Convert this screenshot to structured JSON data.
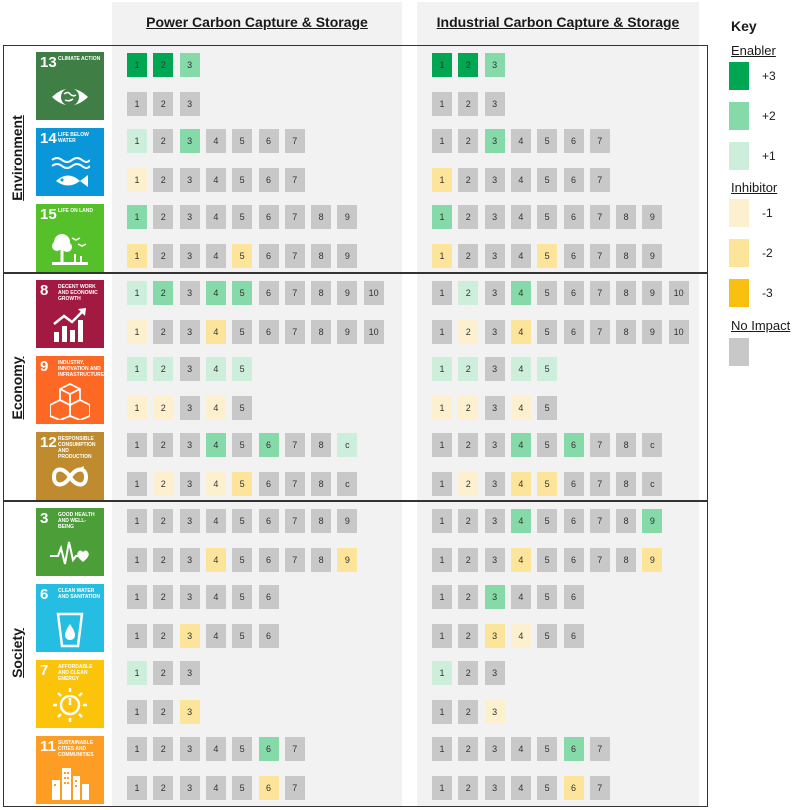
{
  "columns": [
    "Power Carbon Capture & Storage",
    "Industrial Carbon Capture & Storage"
  ],
  "categories": [
    "Environment",
    "Economy",
    "Society"
  ],
  "key": {
    "title": "Key",
    "enabler": "Enabler",
    "inhibitor": "Inhibitor",
    "none": "No Impact",
    "enabler_items": [
      {
        "label": "+3",
        "color": "#00a651"
      },
      {
        "label": "+2",
        "color": "#86d9a8"
      },
      {
        "label": "+1",
        "color": "#cdeedb"
      }
    ],
    "inhibitor_items": [
      {
        "label": "-1",
        "color": "#fdf0cf"
      },
      {
        "label": "-2",
        "color": "#fce49a"
      },
      {
        "label": "-3",
        "color": "#f9c011"
      }
    ],
    "none_color": "#c8c8c8"
  },
  "colors": {
    "3": "#00a651",
    "2": "#86d9a8",
    "1": "#cdeedb",
    "-1": "#fdf0cf",
    "-2": "#fce49a",
    "-3": "#f9c011",
    "0": "#c8c8c8"
  },
  "goals": [
    {
      "num": "13",
      "title": "Climate Action",
      "icon": "eye-globe-icon",
      "color": "#3f7e44",
      "labels": [
        "1",
        "2",
        "3"
      ],
      "power": {
        "en": [
          3,
          3,
          2
        ],
        "in": [
          0,
          0,
          0
        ]
      },
      "industrial": {
        "en": [
          3,
          3,
          2
        ],
        "in": [
          0,
          0,
          0
        ]
      }
    },
    {
      "num": "14",
      "title": "Life Below Water",
      "icon": "fish-icon",
      "color": "#0a97d9",
      "labels": [
        "1",
        "2",
        "3",
        "4",
        "5",
        "6",
        "7"
      ],
      "power": {
        "en": [
          1,
          0,
          2,
          0,
          0,
          0,
          0
        ],
        "in": [
          -1,
          0,
          0,
          0,
          0,
          0,
          0
        ]
      },
      "industrial": {
        "en": [
          0,
          0,
          2,
          0,
          0,
          0,
          0
        ],
        "in": [
          -2,
          0,
          0,
          0,
          0,
          0,
          0
        ]
      }
    },
    {
      "num": "15",
      "title": "Life On Land",
      "icon": "tree-bird-icon",
      "color": "#56c02b",
      "labels": [
        "1",
        "2",
        "3",
        "4",
        "5",
        "6",
        "7",
        "8",
        "9"
      ],
      "power": {
        "en": [
          2,
          0,
          0,
          0,
          0,
          0,
          0,
          0,
          0
        ],
        "in": [
          -2,
          0,
          0,
          0,
          -2,
          0,
          0,
          0,
          0
        ]
      },
      "industrial": {
        "en": [
          2,
          0,
          0,
          0,
          0,
          0,
          0,
          0,
          0
        ],
        "in": [
          -2,
          0,
          0,
          0,
          -2,
          0,
          0,
          0,
          0
        ]
      }
    },
    {
      "num": "8",
      "title": "Decent Work and Economic Growth",
      "icon": "growth-chart-icon",
      "color": "#a21942",
      "labels": [
        "1",
        "2",
        "3",
        "4",
        "5",
        "6",
        "7",
        "8",
        "9",
        "10"
      ],
      "power": {
        "en": [
          1,
          2,
          0,
          2,
          2,
          0,
          0,
          0,
          0,
          0
        ],
        "in": [
          -1,
          0,
          0,
          -2,
          0,
          0,
          0,
          0,
          0,
          0
        ]
      },
      "industrial": {
        "en": [
          0,
          1,
          0,
          2,
          0,
          0,
          0,
          0,
          0,
          0
        ],
        "in": [
          0,
          -1,
          0,
          -2,
          0,
          0,
          0,
          0,
          0,
          0
        ]
      }
    },
    {
      "num": "9",
      "title": "Industry, Innovation and Infrastructure",
      "icon": "cubes-icon",
      "color": "#fd6925",
      "labels": [
        "1",
        "2",
        "3",
        "4",
        "5"
      ],
      "power": {
        "en": [
          1,
          1,
          0,
          1,
          1
        ],
        "in": [
          -1,
          -1,
          0,
          -1,
          0
        ]
      },
      "industrial": {
        "en": [
          1,
          1,
          0,
          1,
          1
        ],
        "in": [
          -1,
          -1,
          0,
          -1,
          0
        ]
      }
    },
    {
      "num": "12",
      "title": "Responsible Consumption and Production",
      "icon": "infinity-icon",
      "color": "#bf8b2e",
      "labels": [
        "1",
        "2",
        "3",
        "4",
        "5",
        "6",
        "7",
        "8",
        "c"
      ],
      "power": {
        "en": [
          0,
          0,
          0,
          2,
          0,
          2,
          0,
          0,
          1
        ],
        "in": [
          0,
          -1,
          0,
          -1,
          -2,
          0,
          0,
          0,
          0
        ]
      },
      "industrial": {
        "en": [
          0,
          0,
          0,
          2,
          0,
          2,
          0,
          0,
          0
        ],
        "in": [
          0,
          -1,
          0,
          -2,
          -2,
          0,
          0,
          0,
          0
        ]
      }
    },
    {
      "num": "3",
      "title": "Good Health and Well-Being",
      "icon": "heartbeat-icon",
      "color": "#4c9f38",
      "labels": [
        "1",
        "2",
        "3",
        "4",
        "5",
        "6",
        "7",
        "8",
        "9"
      ],
      "power": {
        "en": [
          0,
          0,
          0,
          0,
          0,
          0,
          0,
          0,
          0
        ],
        "in": [
          0,
          0,
          0,
          -2,
          0,
          0,
          0,
          0,
          -2
        ]
      },
      "industrial": {
        "en": [
          0,
          0,
          0,
          2,
          0,
          0,
          0,
          0,
          2
        ],
        "in": [
          0,
          0,
          0,
          -2,
          0,
          0,
          0,
          0,
          -2
        ]
      }
    },
    {
      "num": "6",
      "title": "Clean Water and Sanitation",
      "icon": "water-glass-icon",
      "color": "#26bde2",
      "labels": [
        "1",
        "2",
        "3",
        "4",
        "5",
        "6"
      ],
      "power": {
        "en": [
          0,
          0,
          0,
          0,
          0,
          0
        ],
        "in": [
          0,
          0,
          -2,
          0,
          0,
          0
        ]
      },
      "industrial": {
        "en": [
          0,
          0,
          2,
          0,
          0,
          0
        ],
        "in": [
          0,
          0,
          -2,
          -1,
          0,
          0
        ]
      }
    },
    {
      "num": "7",
      "title": "Affordable and Clean Energy",
      "icon": "sun-power-icon",
      "color": "#fcc30b",
      "labels": [
        "1",
        "2",
        "3"
      ],
      "power": {
        "en": [
          1,
          0,
          0
        ],
        "in": [
          0,
          0,
          -2
        ]
      },
      "industrial": {
        "en": [
          1,
          0,
          0
        ],
        "in": [
          0,
          0,
          -1
        ]
      }
    },
    {
      "num": "11",
      "title": "Sustainable Cities and Communities",
      "icon": "city-icon",
      "color": "#fd9d24",
      "labels": [
        "1",
        "2",
        "3",
        "4",
        "5",
        "6",
        "7"
      ],
      "power": {
        "en": [
          0,
          0,
          0,
          0,
          0,
          2,
          0
        ],
        "in": [
          0,
          0,
          0,
          0,
          0,
          -2,
          0
        ]
      },
      "industrial": {
        "en": [
          0,
          0,
          0,
          0,
          0,
          2,
          0
        ],
        "in": [
          0,
          0,
          0,
          0,
          0,
          -2,
          0
        ]
      }
    }
  ]
}
